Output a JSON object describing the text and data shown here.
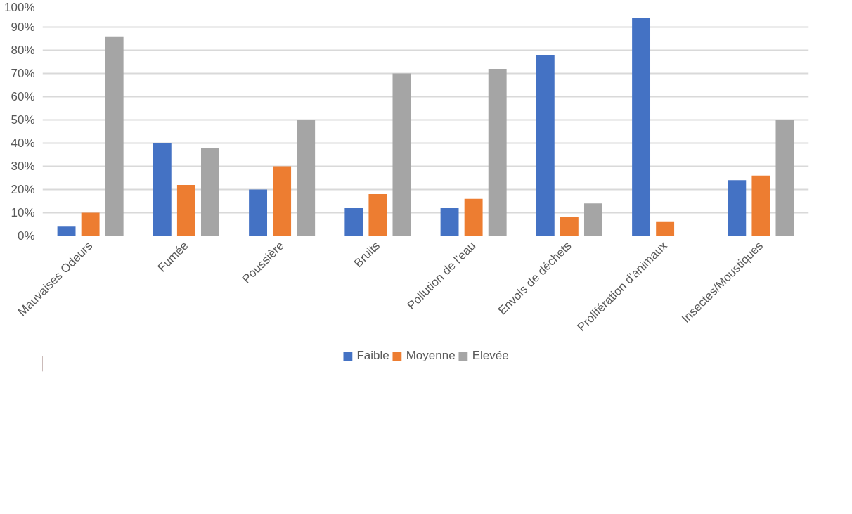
{
  "chart_data": {
    "type": "bar",
    "categories": [
      "Mauvaises Odeurs",
      "Fumée",
      "Poussière",
      "Bruits",
      "Pollution de l'eau",
      "Envols de déchets",
      "Prolifération d'animaux",
      "Insectes/Moustiques"
    ],
    "series": [
      {
        "name": "Faible",
        "color": "#4472c4",
        "values": [
          4,
          40,
          20,
          12,
          12,
          78,
          94,
          24
        ]
      },
      {
        "name": "Moyenne",
        "color": "#ed7d31",
        "values": [
          10,
          22,
          30,
          18,
          16,
          8,
          6,
          26
        ]
      },
      {
        "name": "Elevée",
        "color": "#a5a5a5",
        "values": [
          86,
          38,
          50,
          70,
          72,
          14,
          0,
          50
        ]
      }
    ],
    "ylim": [
      0,
      100
    ],
    "yticks": [
      {
        "value": 0,
        "label": "0%"
      },
      {
        "value": 10,
        "label": "10%"
      },
      {
        "value": 20,
        "label": "20%"
      },
      {
        "value": 30,
        "label": "30%"
      },
      {
        "value": 40,
        "label": "40%"
      },
      {
        "value": 50,
        "label": "50%"
      },
      {
        "value": 60,
        "label": "60%"
      },
      {
        "value": 70,
        "label": "70%"
      },
      {
        "value": 80,
        "label": "80%"
      },
      {
        "value": 90,
        "label": "90%"
      },
      {
        "value": 100,
        "label": "100%"
      }
    ],
    "grid": "y",
    "legend": "bottom"
  }
}
